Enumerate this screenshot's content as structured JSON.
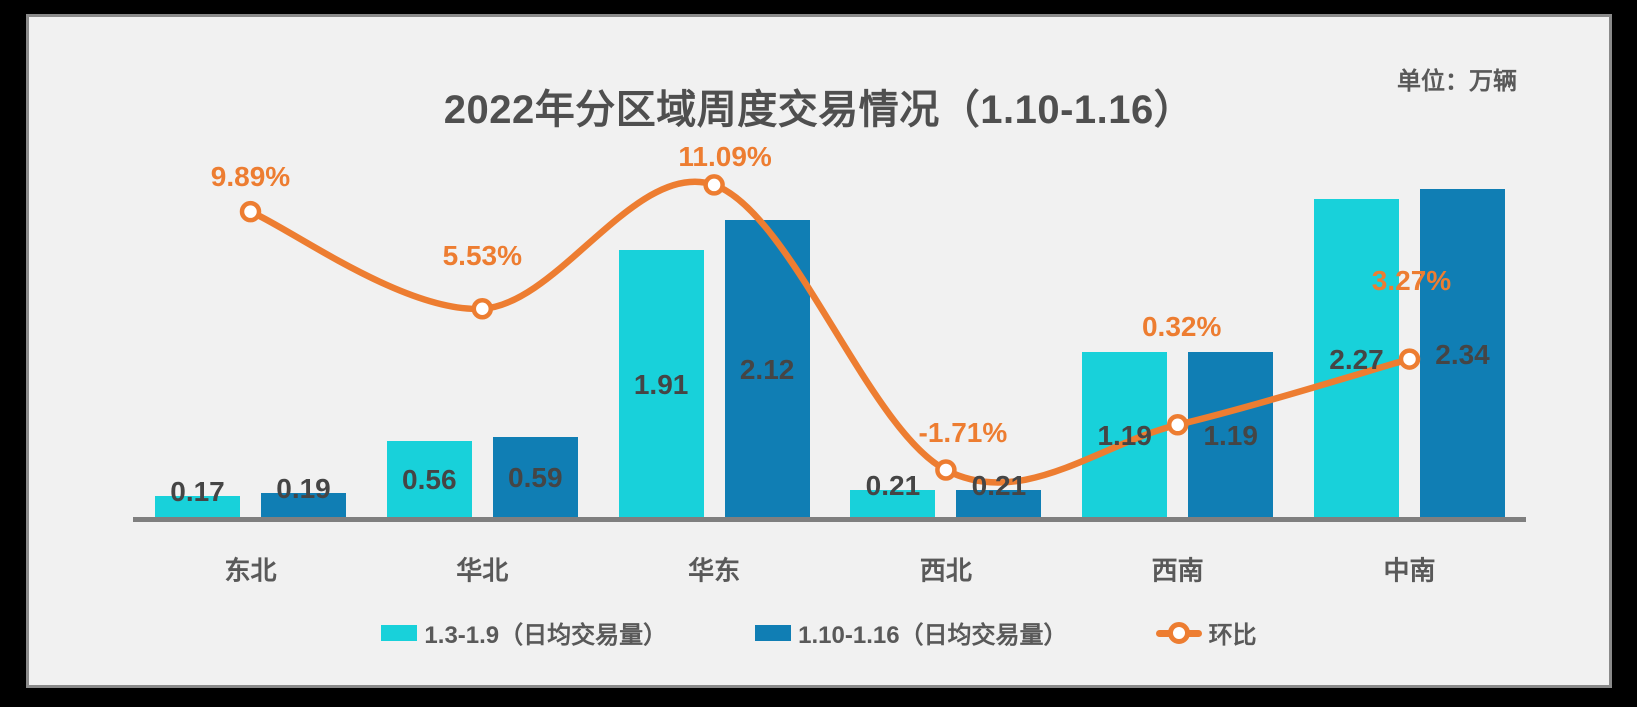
{
  "header": {
    "title": "2022年分区域周度交易情况（1.10-1.16）",
    "unit_label": "单位：万辆"
  },
  "chart_data": {
    "type": "bar",
    "title": "2022年分区域周度交易情况（1.10-1.16）",
    "unit": "万辆",
    "categories": [
      "东北",
      "华北",
      "华东",
      "西北",
      "西南",
      "中南"
    ],
    "series": [
      {
        "name": "1.3-1.9（日均交易量）",
        "type": "bar",
        "color": "#18D1DA",
        "values": [
          0.17,
          0.56,
          1.91,
          0.21,
          1.19,
          2.27
        ],
        "labels": [
          "0.17",
          "0.56",
          "1.91",
          "0.21",
          "1.19",
          "2.27"
        ]
      },
      {
        "name": "1.10-1.16（日均交易量）",
        "type": "bar",
        "color": "#107EB4",
        "values": [
          0.19,
          0.59,
          2.12,
          0.21,
          1.19,
          2.34
        ],
        "labels": [
          "0.19",
          "0.59",
          "2.12",
          "0.21",
          "1.19",
          "2.34"
        ]
      },
      {
        "name": "环比",
        "type": "line",
        "color": "#ED7D31",
        "values": [
          9.89,
          5.53,
          11.09,
          -1.71,
          0.32,
          3.27
        ],
        "labels": [
          "9.89%",
          "5.53%",
          "11.09%",
          "-1.71%",
          "0.32%",
          "3.27%"
        ]
      }
    ],
    "legend_position": "bottom",
    "grid": false,
    "value_axis_visible": false,
    "bar_value_range": [
      0,
      2.34
    ],
    "line_value_range_pct": [
      -1.71,
      11.09
    ]
  },
  "legend": {
    "items": [
      {
        "label": "1.3-1.9（日均交易量）",
        "swatch": "cyan-bar"
      },
      {
        "label": "1.10-1.16（日均交易量）",
        "swatch": "blue-bar"
      },
      {
        "label": "环比",
        "swatch": "orange-line-marker"
      }
    ]
  },
  "colors": {
    "bar_week1": "#18D1DA",
    "bar_week2": "#107EB4",
    "line": "#ED7D31",
    "panel_background": "#F1F1F1",
    "frame_border": "#8A8A8A",
    "axis_line": "#7F7F7F",
    "title_text": "#4F4F4F",
    "value_text": "#454545",
    "category_text": "#595959",
    "outer_background": "#000000"
  }
}
